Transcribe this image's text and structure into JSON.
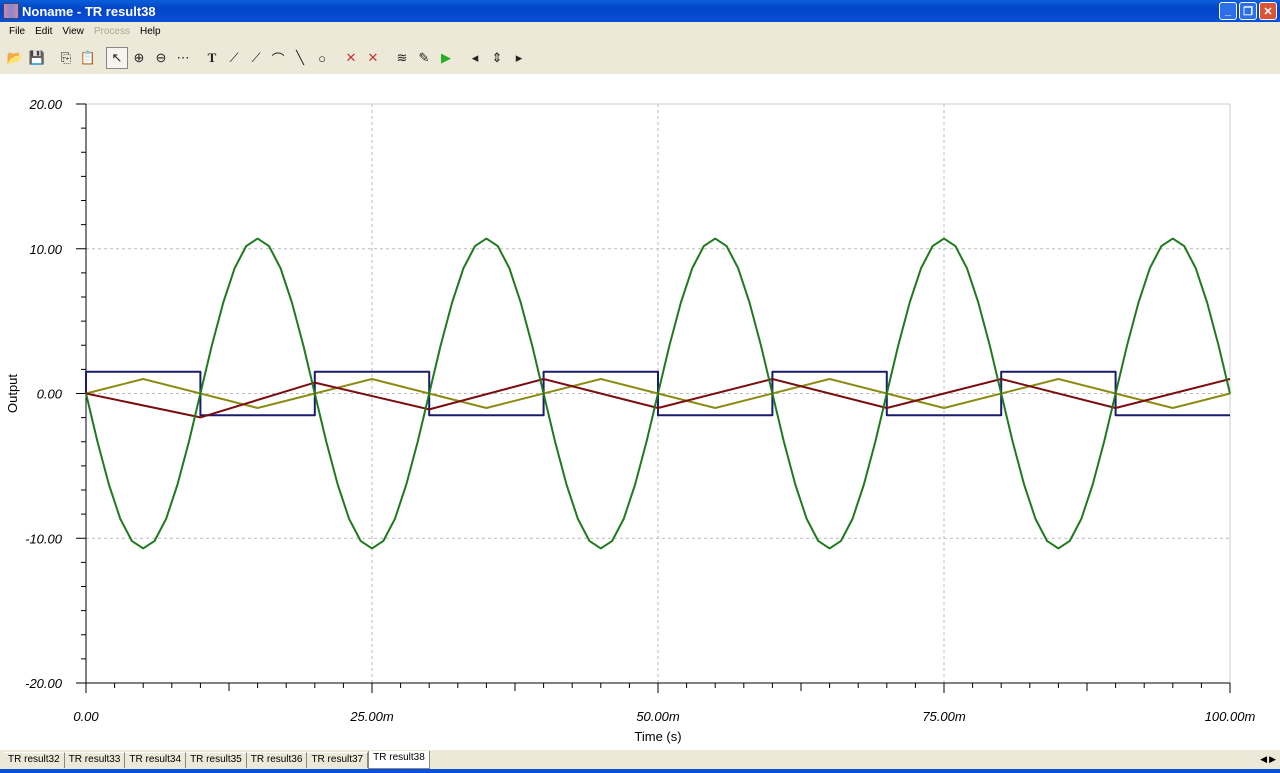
{
  "window": {
    "title": "Noname - TR result38"
  },
  "menu": [
    {
      "label": "File",
      "enabled": true
    },
    {
      "label": "Edit",
      "enabled": true
    },
    {
      "label": "View",
      "enabled": true
    },
    {
      "label": "Process",
      "enabled": false
    },
    {
      "label": "Help",
      "enabled": true
    }
  ],
  "toolbar": [
    {
      "name": "open-icon",
      "glyph": "📂"
    },
    {
      "name": "save-icon",
      "glyph": "💾"
    },
    {
      "sep": true
    },
    {
      "name": "copy-icon",
      "glyph": "⎘"
    },
    {
      "name": "paste-icon",
      "glyph": "📋"
    },
    {
      "sep": true
    },
    {
      "name": "select-arrow-icon",
      "glyph": "↖",
      "pressed": true
    },
    {
      "name": "zoom-in-icon",
      "glyph": "⊕"
    },
    {
      "name": "zoom-100-icon",
      "glyph": "⊖"
    },
    {
      "name": "grid-icon",
      "glyph": "⋯"
    },
    {
      "sep": true
    },
    {
      "name": "text-icon",
      "glyph": "T"
    },
    {
      "name": "curve-label-icon",
      "glyph": "⟋"
    },
    {
      "name": "curve-query-icon",
      "glyph": "⟋"
    },
    {
      "name": "curve-legend-icon",
      "glyph": "⌒"
    },
    {
      "name": "line-icon",
      "glyph": "╲"
    },
    {
      "name": "circle-icon",
      "glyph": "○"
    },
    {
      "sep": true
    },
    {
      "name": "cursor-a-icon",
      "glyph": "✕"
    },
    {
      "name": "cursor-b-icon",
      "glyph": "✕"
    },
    {
      "sep": true
    },
    {
      "name": "add-curve-icon",
      "glyph": "≋"
    },
    {
      "name": "add-probe-icon",
      "glyph": "✎"
    },
    {
      "name": "run-icon",
      "glyph": "▶"
    },
    {
      "sep": true
    },
    {
      "name": "arrow-left-icon",
      "glyph": "◂"
    },
    {
      "name": "arrow-updown-icon",
      "glyph": "⇕"
    },
    {
      "name": "arrow-right-icon",
      "glyph": "▸"
    }
  ],
  "tabs": [
    {
      "label": "TR result32"
    },
    {
      "label": "TR result33"
    },
    {
      "label": "TR result34"
    },
    {
      "label": "TR result35"
    },
    {
      "label": "TR result36"
    },
    {
      "label": "TR result37"
    },
    {
      "label": "TR result38",
      "active": true
    }
  ],
  "chart_data": {
    "type": "line",
    "xlabel": "Time (s)",
    "ylabel": "Output",
    "xlim": [
      0,
      0.1
    ],
    "ylim": [
      -20,
      20
    ],
    "xticks": [
      {
        "v": 0,
        "label": "0.00"
      },
      {
        "v": 0.025,
        "label": "25.00m"
      },
      {
        "v": 0.05,
        "label": "50.00m"
      },
      {
        "v": 0.075,
        "label": "75.00m"
      },
      {
        "v": 0.1,
        "label": "100.00m"
      }
    ],
    "yticks": [
      {
        "v": 20,
        "label": "20.00"
      },
      {
        "v": 10,
        "label": "10.00"
      },
      {
        "v": 0,
        "label": "0.00"
      },
      {
        "v": -10,
        "label": "-10.00"
      },
      {
        "v": -20,
        "label": "-20.00"
      }
    ],
    "grid": true,
    "series": [
      {
        "color": "#1a1a6e",
        "points": [
          [
            0,
            0
          ],
          [
            0,
            1.5
          ],
          [
            0.01,
            1.5
          ],
          [
            0.01,
            -1.5
          ],
          [
            0.02,
            -1.5
          ],
          [
            0.02,
            1.5
          ],
          [
            0.03,
            1.5
          ],
          [
            0.03,
            -1.5
          ],
          [
            0.04,
            -1.5
          ],
          [
            0.04,
            1.5
          ],
          [
            0.05,
            1.5
          ],
          [
            0.05,
            -1.5
          ],
          [
            0.06,
            -1.5
          ],
          [
            0.06,
            1.5
          ],
          [
            0.07,
            1.5
          ],
          [
            0.07,
            -1.5
          ],
          [
            0.08,
            -1.5
          ],
          [
            0.08,
            1.5
          ],
          [
            0.09,
            1.5
          ],
          [
            0.09,
            -1.5
          ],
          [
            0.1,
            -1.5
          ]
        ]
      },
      {
        "color": "#8b8b14",
        "points": [
          [
            0,
            0
          ],
          [
            0.005,
            1
          ],
          [
            0.015,
            -1
          ],
          [
            0.025,
            1
          ],
          [
            0.035,
            -1
          ],
          [
            0.045,
            1
          ],
          [
            0.055,
            -1
          ],
          [
            0.065,
            1
          ],
          [
            0.075,
            -1
          ],
          [
            0.085,
            1
          ],
          [
            0.095,
            -1
          ],
          [
            0.1,
            0
          ]
        ]
      },
      {
        "color": "#7a0e0e",
        "points": [
          [
            0,
            0
          ],
          [
            0.01,
            -1.65
          ],
          [
            0.02,
            0.75
          ],
          [
            0.03,
            -1.1
          ],
          [
            0.04,
            1.0
          ],
          [
            0.05,
            -1.0
          ],
          [
            0.06,
            1.0
          ],
          [
            0.07,
            -1.0
          ],
          [
            0.08,
            1.0
          ],
          [
            0.09,
            -1.0
          ],
          [
            0.1,
            1.0
          ]
        ]
      },
      {
        "color": "#1f7a1f",
        "points": [
          [
            0,
            0
          ],
          [
            0.001,
            -3.31
          ],
          [
            0.002,
            -6.29
          ],
          [
            0.003,
            -8.66
          ],
          [
            0.004,
            -10.18
          ],
          [
            0.005,
            -10.7
          ],
          [
            0.006,
            -10.18
          ],
          [
            0.007,
            -8.66
          ],
          [
            0.008,
            -6.29
          ],
          [
            0.009,
            -3.31
          ],
          [
            0.01,
            0
          ],
          [
            0.011,
            3.31
          ],
          [
            0.012,
            6.29
          ],
          [
            0.013,
            8.66
          ],
          [
            0.014,
            10.18
          ],
          [
            0.015,
            10.7
          ],
          [
            0.016,
            10.18
          ],
          [
            0.017,
            8.66
          ],
          [
            0.018,
            6.29
          ],
          [
            0.019,
            3.31
          ],
          [
            0.02,
            0
          ],
          [
            0.021,
            -3.31
          ],
          [
            0.022,
            -6.29
          ],
          [
            0.023,
            -8.66
          ],
          [
            0.024,
            -10.18
          ],
          [
            0.025,
            -10.7
          ],
          [
            0.026,
            -10.18
          ],
          [
            0.027,
            -8.66
          ],
          [
            0.028,
            -6.29
          ],
          [
            0.029,
            -3.31
          ],
          [
            0.03,
            0
          ],
          [
            0.031,
            3.31
          ],
          [
            0.032,
            6.29
          ],
          [
            0.033,
            8.66
          ],
          [
            0.034,
            10.18
          ],
          [
            0.035,
            10.7
          ],
          [
            0.036,
            10.18
          ],
          [
            0.037,
            8.66
          ],
          [
            0.038,
            6.29
          ],
          [
            0.039,
            3.31
          ],
          [
            0.04,
            0
          ],
          [
            0.041,
            -3.31
          ],
          [
            0.042,
            -6.29
          ],
          [
            0.043,
            -8.66
          ],
          [
            0.044,
            -10.18
          ],
          [
            0.045,
            -10.7
          ],
          [
            0.046,
            -10.18
          ],
          [
            0.047,
            -8.66
          ],
          [
            0.048,
            -6.29
          ],
          [
            0.049,
            -3.31
          ],
          [
            0.05,
            0
          ],
          [
            0.051,
            3.31
          ],
          [
            0.052,
            6.29
          ],
          [
            0.053,
            8.66
          ],
          [
            0.054,
            10.18
          ],
          [
            0.055,
            10.7
          ],
          [
            0.056,
            10.18
          ],
          [
            0.057,
            8.66
          ],
          [
            0.058,
            6.29
          ],
          [
            0.059,
            3.31
          ],
          [
            0.06,
            0
          ],
          [
            0.061,
            -3.31
          ],
          [
            0.062,
            -6.29
          ],
          [
            0.063,
            -8.66
          ],
          [
            0.064,
            -10.18
          ],
          [
            0.065,
            -10.7
          ],
          [
            0.066,
            -10.18
          ],
          [
            0.067,
            -8.66
          ],
          [
            0.068,
            -6.29
          ],
          [
            0.069,
            -3.31
          ],
          [
            0.07,
            0
          ],
          [
            0.071,
            3.31
          ],
          [
            0.072,
            6.29
          ],
          [
            0.073,
            8.66
          ],
          [
            0.074,
            10.18
          ],
          [
            0.075,
            10.7
          ],
          [
            0.076,
            10.18
          ],
          [
            0.077,
            8.66
          ],
          [
            0.078,
            6.29
          ],
          [
            0.079,
            3.31
          ],
          [
            0.08,
            0
          ],
          [
            0.081,
            -3.31
          ],
          [
            0.082,
            -6.29
          ],
          [
            0.083,
            -8.66
          ],
          [
            0.084,
            -10.18
          ],
          [
            0.085,
            -10.7
          ],
          [
            0.086,
            -10.18
          ],
          [
            0.087,
            -8.66
          ],
          [
            0.088,
            -6.29
          ],
          [
            0.089,
            -3.31
          ],
          [
            0.09,
            0
          ],
          [
            0.091,
            3.31
          ],
          [
            0.092,
            6.29
          ],
          [
            0.093,
            8.66
          ],
          [
            0.094,
            10.18
          ],
          [
            0.095,
            10.7
          ],
          [
            0.096,
            10.18
          ],
          [
            0.097,
            8.66
          ],
          [
            0.098,
            6.29
          ],
          [
            0.099,
            3.31
          ],
          [
            0.1,
            0
          ]
        ]
      }
    ]
  }
}
